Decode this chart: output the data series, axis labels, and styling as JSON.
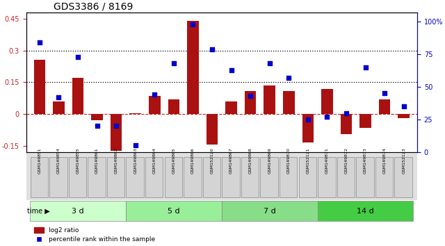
{
  "title": "GDS3386 / 8169",
  "samples": [
    "GSM149851",
    "GSM149854",
    "GSM149855",
    "GSM149861",
    "GSM149862",
    "GSM149863",
    "GSM149864",
    "GSM149865",
    "GSM149866",
    "GSM152120",
    "GSM149867",
    "GSM149868",
    "GSM149869",
    "GSM149870",
    "GSM152121",
    "GSM149871",
    "GSM149872",
    "GSM149873",
    "GSM149874",
    "GSM152123"
  ],
  "log2_ratio": [
    0.255,
    0.06,
    0.17,
    -0.03,
    -0.175,
    0.005,
    0.085,
    0.07,
    0.44,
    -0.145,
    0.06,
    0.11,
    0.135,
    0.11,
    -0.135,
    0.12,
    -0.095,
    -0.065,
    0.07,
    -0.02
  ],
  "percentile_rank": [
    84,
    42,
    73,
    20,
    20,
    5,
    44,
    68,
    98,
    79,
    63,
    43,
    68,
    57,
    25,
    27,
    30,
    65,
    45,
    35
  ],
  "groups": [
    {
      "label": "3 d",
      "start": 0,
      "end": 5,
      "color": "#ccffcc"
    },
    {
      "label": "5 d",
      "start": 5,
      "end": 10,
      "color": "#99ee99"
    },
    {
      "label": "7 d",
      "start": 10,
      "end": 15,
      "color": "#88dd88"
    },
    {
      "label": "14 d",
      "start": 15,
      "end": 20,
      "color": "#44cc44"
    }
  ],
  "bar_color": "#aa1111",
  "dot_color": "#0000cc",
  "zero_line_color": "#cc2222",
  "dotted_line_color": "#000000",
  "left_axis_color": "#cc2222",
  "right_axis_color": "#0000cc",
  "ylim_left": [
    -0.18,
    0.48
  ],
  "ylim_right": [
    0,
    107
  ],
  "yticks_left": [
    -0.15,
    0.0,
    0.15,
    0.3,
    0.45
  ],
  "yticks_right": [
    0,
    25,
    50,
    75,
    100
  ],
  "hlines": [
    0.15,
    0.3
  ],
  "background_color": "#ffffff",
  "plot_bg": "#ffffff"
}
